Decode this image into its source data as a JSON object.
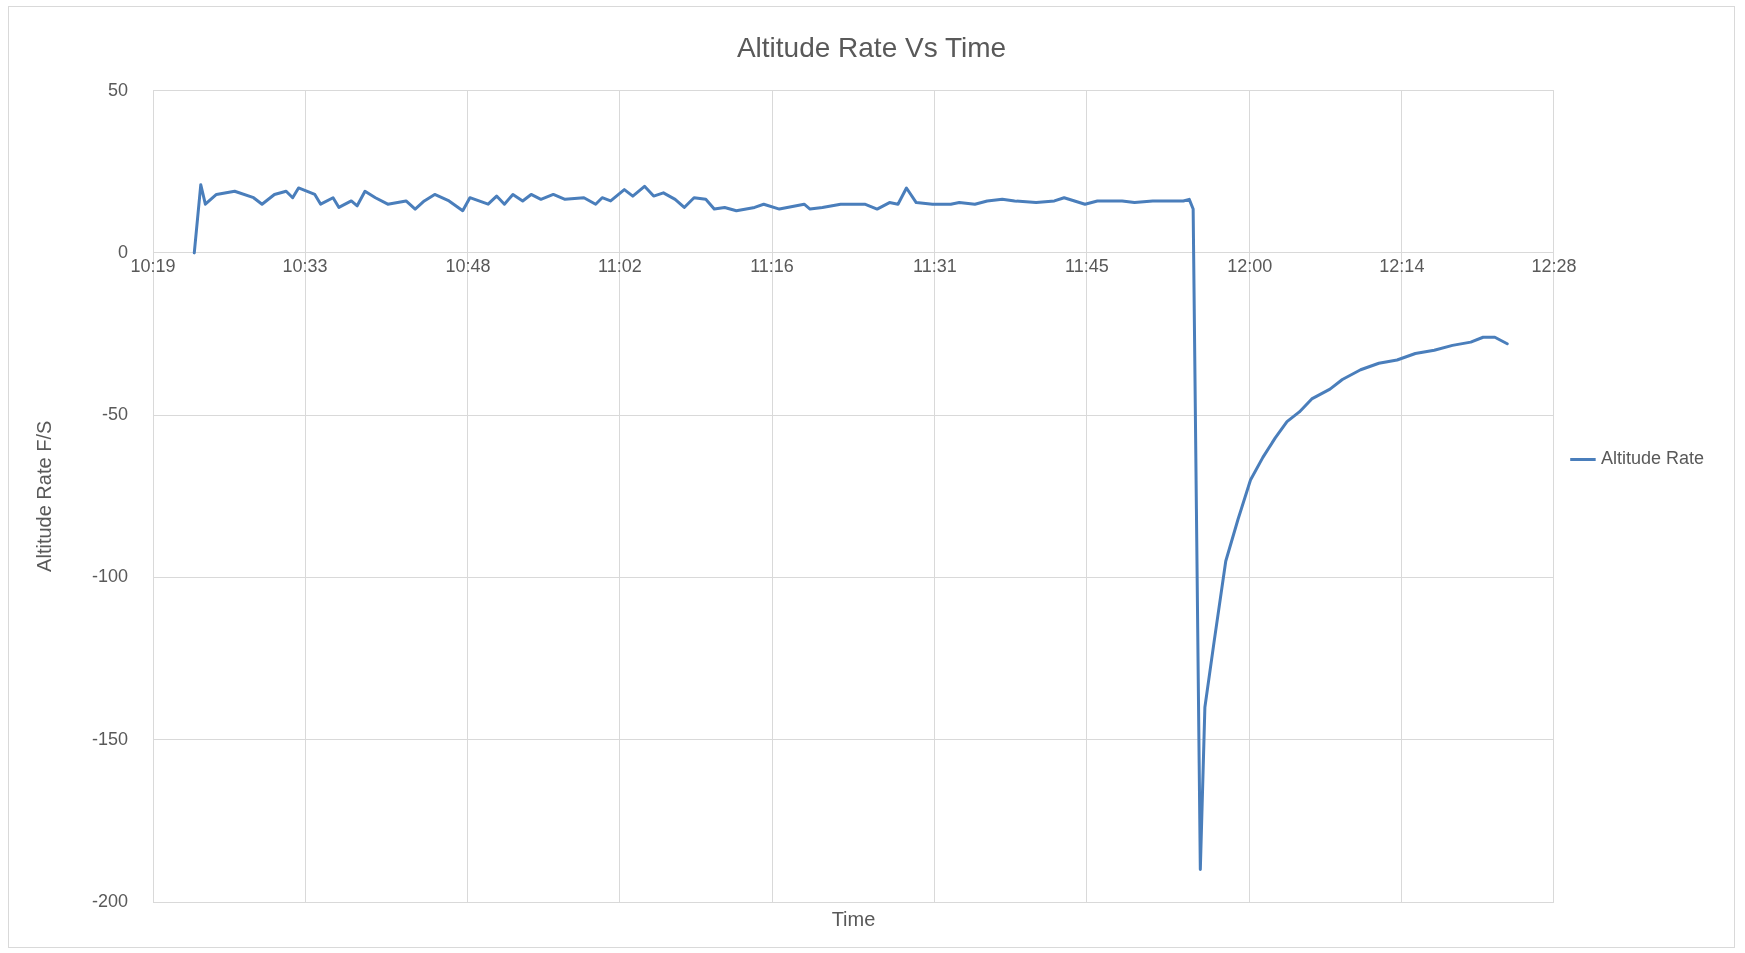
{
  "chart_data": {
    "type": "line",
    "title": "Altitude Rate Vs Time",
    "xlabel": "Time",
    "ylabel": "Altitude Rate F/S",
    "xlim": [
      10.3167,
      12.4667
    ],
    "xticks": [
      {
        "value": 10.3167,
        "label": "10:19"
      },
      {
        "value": 10.55,
        "label": "10:33"
      },
      {
        "value": 10.8,
        "label": "10:48"
      },
      {
        "value": 11.0333,
        "label": "11:02"
      },
      {
        "value": 11.2667,
        "label": "11:16"
      },
      {
        "value": 11.5167,
        "label": "11:31"
      },
      {
        "value": 11.75,
        "label": "11:45"
      },
      {
        "value": 12.0,
        "label": "12:00"
      },
      {
        "value": 12.2333,
        "label": "12:14"
      },
      {
        "value": 12.4667,
        "label": "12:28"
      }
    ],
    "ylim": [
      -200,
      50
    ],
    "yticks": [
      50,
      0,
      -50,
      -100,
      -150,
      -200
    ],
    "grid": true,
    "legend": "right",
    "marker": "none",
    "line_style": "solid",
    "series": [
      {
        "name": "Altitude Rate",
        "color": "#4a7ebb",
        "x": [
          10.38,
          10.39,
          10.397,
          10.414,
          10.442,
          10.471,
          10.484,
          10.503,
          10.521,
          10.531,
          10.54,
          10.565,
          10.574,
          10.593,
          10.602,
          10.621,
          10.63,
          10.642,
          10.658,
          10.677,
          10.705,
          10.719,
          10.733,
          10.749,
          10.771,
          10.792,
          10.803,
          10.831,
          10.844,
          10.856,
          10.869,
          10.884,
          10.897,
          10.912,
          10.931,
          10.949,
          10.978,
          10.996,
          11.006,
          11.019,
          11.04,
          11.053,
          11.071,
          11.085,
          11.1,
          11.118,
          11.132,
          11.147,
          11.165,
          11.178,
          11.194,
          11.212,
          11.24,
          11.254,
          11.278,
          11.316,
          11.325,
          11.344,
          11.372,
          11.409,
          11.428,
          11.447,
          11.46,
          11.473,
          11.488,
          11.513,
          11.541,
          11.554,
          11.578,
          11.597,
          11.62,
          11.639,
          11.672,
          11.7,
          11.715,
          11.747,
          11.766,
          11.785,
          11.804,
          11.823,
          11.851,
          11.898,
          11.907,
          11.913,
          11.924,
          11.931,
          11.945,
          11.963,
          11.982,
          12.001,
          12.02,
          12.039,
          12.057,
          12.076,
          12.095,
          12.123,
          12.142,
          12.17,
          12.198,
          12.226,
          12.254,
          12.283,
          12.311,
          12.339,
          12.358,
          12.376,
          12.395
        ],
        "values": [
          0,
          21,
          15,
          18,
          19,
          17,
          15,
          18,
          19,
          17,
          20,
          18,
          15,
          17,
          14,
          16,
          14.5,
          19,
          17,
          15,
          16,
          13.5,
          16,
          18,
          16,
          13,
          17,
          15,
          17.5,
          15,
          18,
          16,
          18,
          16.5,
          18,
          16.5,
          17,
          15,
          17,
          16,
          19.5,
          17.5,
          20.5,
          17.5,
          18.5,
          16.5,
          14,
          17,
          16.5,
          13.5,
          14,
          13,
          14,
          15,
          13.5,
          15,
          13.5,
          14,
          15,
          15,
          13.5,
          15.5,
          15,
          20,
          15.5,
          15,
          15,
          15.5,
          15,
          16,
          16.5,
          16,
          15.5,
          16,
          17,
          15,
          16,
          16,
          16,
          15.5,
          16,
          16,
          16.5,
          13.5,
          -190,
          -140,
          -120,
          -95,
          -82,
          -70,
          -63,
          -57,
          -52,
          -49,
          -45,
          -42,
          -39,
          -36,
          -34,
          -33,
          -31,
          -30,
          -28.5,
          -27.5,
          -26,
          -26,
          -28
        ]
      }
    ]
  }
}
